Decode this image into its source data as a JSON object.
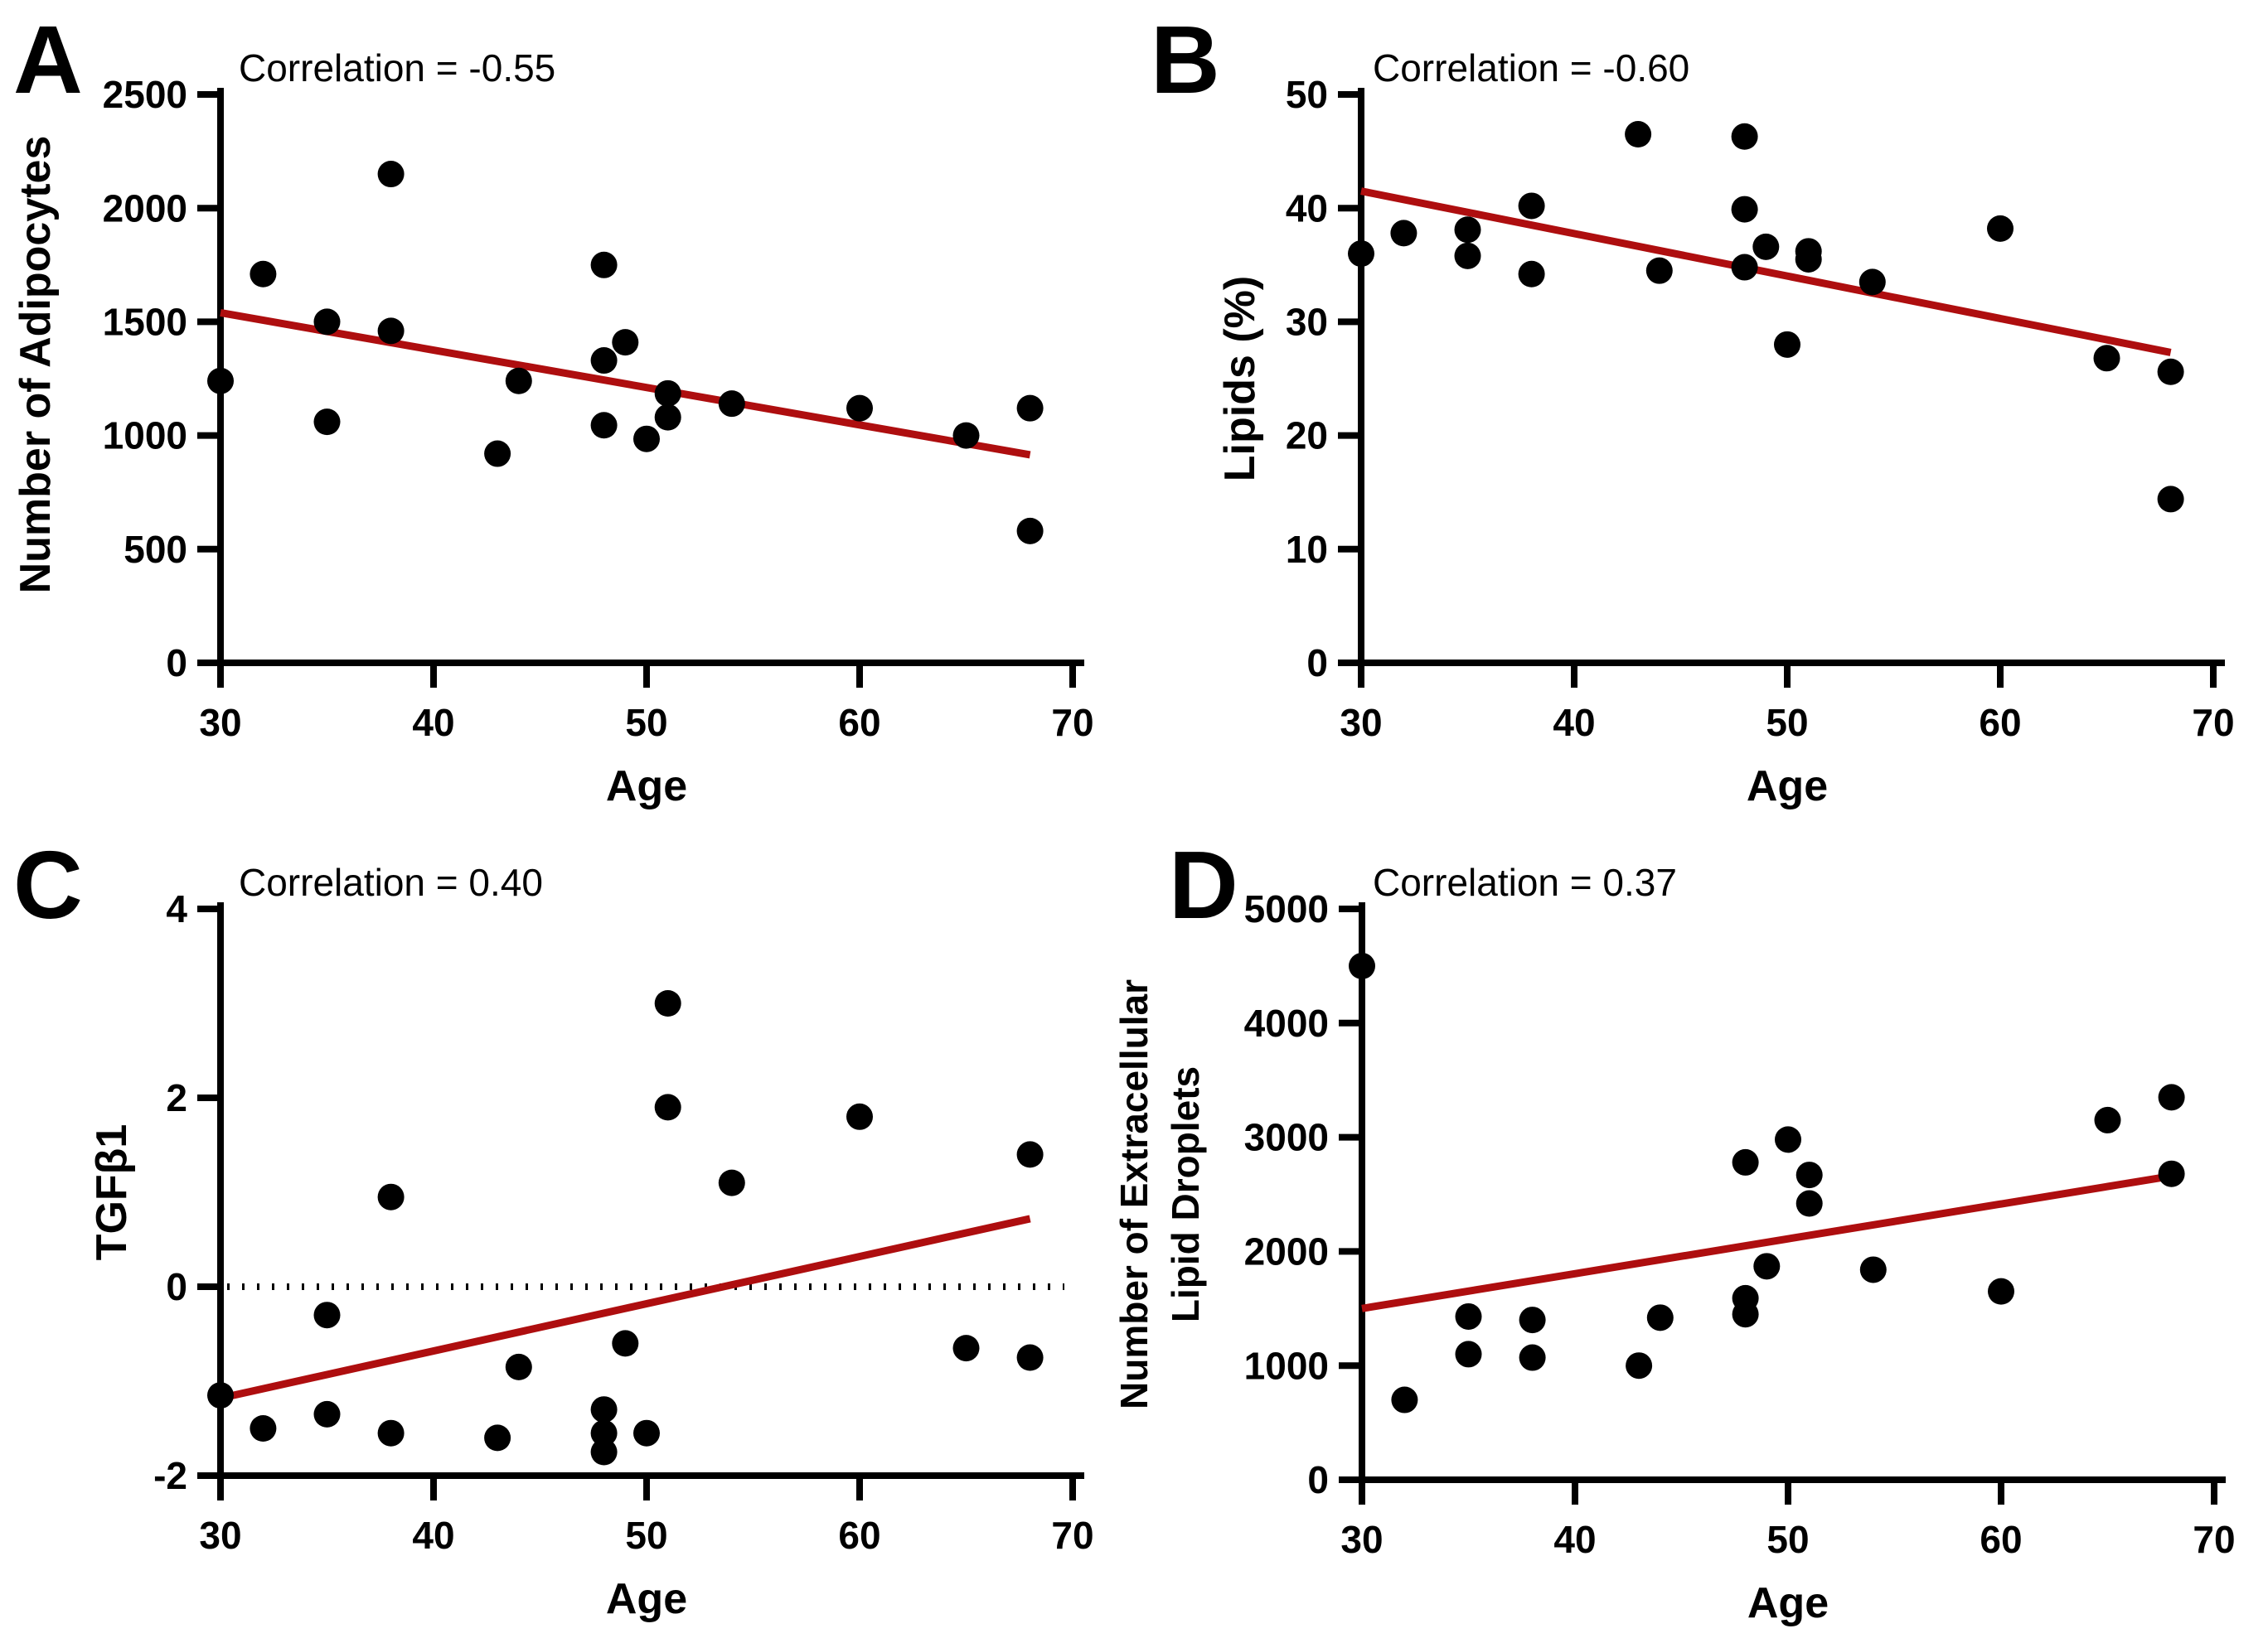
{
  "figure": {
    "background": "#ffffff",
    "point_color": "#000000",
    "trend_color": "#AE0E0F",
    "axis_color": "#000000",
    "panel_letters": [
      "A",
      "B",
      "C",
      "D"
    ]
  },
  "chart_data": [
    {
      "panel": "A",
      "type": "scatter",
      "title": "Correlation = -0.55",
      "xlabel": "Age",
      "ylabel": "Number of Adipocytes",
      "ylabel_lines": [
        "Number of Adipocytes"
      ],
      "xlim": [
        30,
        70
      ],
      "xticks": [
        30,
        40,
        50,
        60,
        70
      ],
      "ylim": [
        0,
        2500
      ],
      "yticks": [
        0,
        500,
        1000,
        1500,
        2000,
        2500
      ],
      "grid": false,
      "legend": "none",
      "zero_line": false,
      "points": [
        [
          30,
          1240
        ],
        [
          32,
          1710
        ],
        [
          35,
          1500
        ],
        [
          35,
          1060
        ],
        [
          38,
          2150
        ],
        [
          38,
          1460
        ],
        [
          43,
          920
        ],
        [
          44,
          1240
        ],
        [
          48,
          1750
        ],
        [
          48,
          1330
        ],
        [
          48,
          1045
        ],
        [
          49,
          1410
        ],
        [
          50,
          985
        ],
        [
          51,
          1185
        ],
        [
          51,
          1080
        ],
        [
          54,
          1140
        ],
        [
          60,
          1120
        ],
        [
          65,
          1000
        ],
        [
          68,
          1120
        ],
        [
          68,
          580
        ]
      ],
      "trend_line": {
        "x1": 30,
        "y1": 1540,
        "x2": 68,
        "y2": 915
      }
    },
    {
      "panel": "B",
      "type": "scatter",
      "title": "Correlation = -0.60",
      "xlabel": "Age",
      "ylabel": "Lipids (%)",
      "ylabel_lines": [
        "Lipids (%)"
      ],
      "xlim": [
        30,
        70
      ],
      "xticks": [
        30,
        40,
        50,
        60,
        70
      ],
      "ylim": [
        0,
        50
      ],
      "yticks": [
        0,
        10,
        20,
        30,
        40,
        50
      ],
      "grid": false,
      "legend": "none",
      "zero_line": false,
      "points": [
        [
          30,
          36.0
        ],
        [
          32,
          37.8
        ],
        [
          35,
          38.1
        ],
        [
          35,
          35.8
        ],
        [
          38,
          40.2
        ],
        [
          38,
          34.2
        ],
        [
          43,
          46.5
        ],
        [
          44,
          34.5
        ],
        [
          48,
          46.3
        ],
        [
          48,
          39.9
        ],
        [
          48,
          34.8
        ],
        [
          49,
          36.6
        ],
        [
          50,
          28.0
        ],
        [
          51,
          36.2
        ],
        [
          51,
          35.5
        ],
        [
          54,
          33.5
        ],
        [
          60,
          38.2
        ],
        [
          65,
          26.8
        ],
        [
          68,
          25.6
        ],
        [
          68,
          14.4
        ]
      ],
      "trend_line": {
        "x1": 30,
        "y1": 41.5,
        "x2": 68,
        "y2": 27.3
      }
    },
    {
      "panel": "C",
      "type": "scatter",
      "title": "Correlation = 0.40",
      "xlabel": "Age",
      "ylabel": "TGFβ1",
      "ylabel_lines": [
        "TGFβ1"
      ],
      "xlim": [
        30,
        70
      ],
      "xticks": [
        30,
        40,
        50,
        60,
        70
      ],
      "ylim": [
        -2,
        4
      ],
      "yticks": [
        -2,
        0,
        2,
        4
      ],
      "grid": false,
      "legend": "none",
      "zero_line": true,
      "points": [
        [
          30,
          -1.15
        ],
        [
          32,
          -1.5
        ],
        [
          35,
          -0.3
        ],
        [
          35,
          -1.35
        ],
        [
          38,
          0.95
        ],
        [
          38,
          -1.55
        ],
        [
          43,
          -1.6
        ],
        [
          44,
          -0.85
        ],
        [
          48,
          -1.3
        ],
        [
          48,
          -1.55
        ],
        [
          48,
          -1.75
        ],
        [
          49,
          -0.6
        ],
        [
          50,
          -1.55
        ],
        [
          51,
          3.0
        ],
        [
          51,
          1.9
        ],
        [
          54,
          1.1
        ],
        [
          60,
          1.8
        ],
        [
          65,
          -0.65
        ],
        [
          68,
          1.4
        ],
        [
          68,
          -0.75
        ]
      ],
      "trend_line": {
        "x1": 30,
        "y1": -1.18,
        "x2": 68,
        "y2": 0.72
      }
    },
    {
      "panel": "D",
      "type": "scatter",
      "title": "Correlation = 0.37",
      "xlabel": "Age",
      "ylabel": "Number of Extracellular Lipid Droplets",
      "ylabel_lines": [
        "Number of Extracellular",
        "Lipid Droplets"
      ],
      "xlim": [
        30,
        70
      ],
      "xticks": [
        30,
        40,
        50,
        60,
        70
      ],
      "ylim": [
        0,
        5000
      ],
      "yticks": [
        0,
        1000,
        2000,
        3000,
        4000,
        5000
      ],
      "grid": false,
      "legend": "none",
      "zero_line": false,
      "points": [
        [
          30,
          4500
        ],
        [
          32,
          700
        ],
        [
          35,
          1430
        ],
        [
          35,
          1100
        ],
        [
          38,
          1400
        ],
        [
          38,
          1070
        ],
        [
          43,
          1000
        ],
        [
          44,
          1420
        ],
        [
          48,
          2780
        ],
        [
          48,
          1590
        ],
        [
          48,
          1450
        ],
        [
          49,
          1870
        ],
        [
          50,
          2980
        ],
        [
          51,
          2670
        ],
        [
          51,
          2420
        ],
        [
          54,
          1840
        ],
        [
          60,
          1650
        ],
        [
          65,
          3150
        ],
        [
          68,
          3350
        ],
        [
          68,
          2680
        ]
      ],
      "trend_line": {
        "x1": 30,
        "y1": 1500,
        "x2": 68,
        "y2": 2660
      }
    }
  ]
}
